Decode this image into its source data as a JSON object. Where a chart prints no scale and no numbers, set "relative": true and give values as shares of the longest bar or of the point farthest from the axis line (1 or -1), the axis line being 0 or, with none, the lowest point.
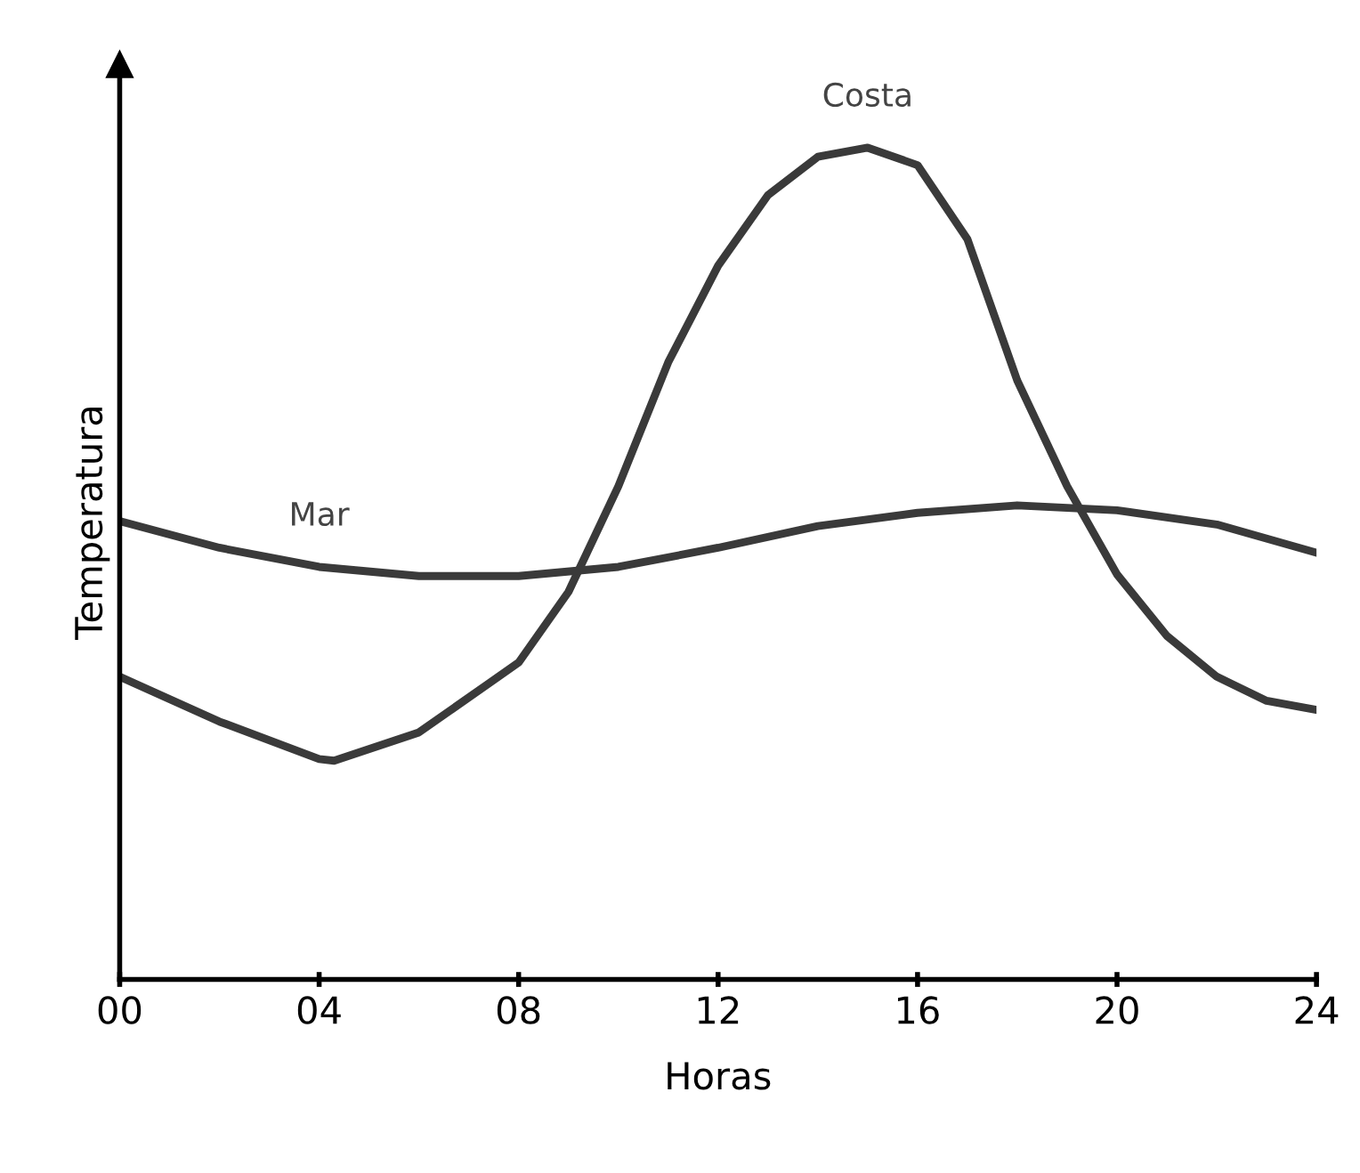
{
  "chart_data": {
    "type": "line",
    "relative": true,
    "xlabel": "Horas",
    "ylabel": "Temperatura",
    "xlim": [
      0,
      24
    ],
    "xticks": [
      {
        "value": 0,
        "label": "00"
      },
      {
        "value": 4,
        "label": "04"
      },
      {
        "value": 8,
        "label": "08"
      },
      12,
      16,
      20,
      24
    ],
    "legend": false,
    "grid": false,
    "marker": "none",
    "line_style": "solid",
    "series": [
      {
        "name": "Costa",
        "color": "#3a3a3a",
        "x": [
          0,
          2,
          4,
          4.3,
          6,
          8,
          9,
          10,
          11,
          12,
          13,
          14,
          15,
          16,
          17,
          18,
          19,
          20,
          21,
          22,
          23,
          24
        ],
        "values": [
          0.364,
          0.31,
          0.265,
          0.263,
          0.297,
          0.381,
          0.466,
          0.593,
          0.742,
          0.858,
          0.943,
          0.989,
          1.0,
          0.979,
          0.89,
          0.72,
          0.593,
          0.487,
          0.413,
          0.364,
          0.335,
          0.324
        ]
      },
      {
        "name": "Mar",
        "color": "#3a3a3a",
        "x": [
          0,
          2,
          4,
          6,
          8,
          10,
          12,
          14,
          16,
          18,
          20,
          22,
          24
        ],
        "values": [
          0.551,
          0.519,
          0.496,
          0.485,
          0.485,
          0.496,
          0.519,
          0.545,
          0.561,
          0.57,
          0.564,
          0.547,
          0.513
        ]
      }
    ]
  }
}
